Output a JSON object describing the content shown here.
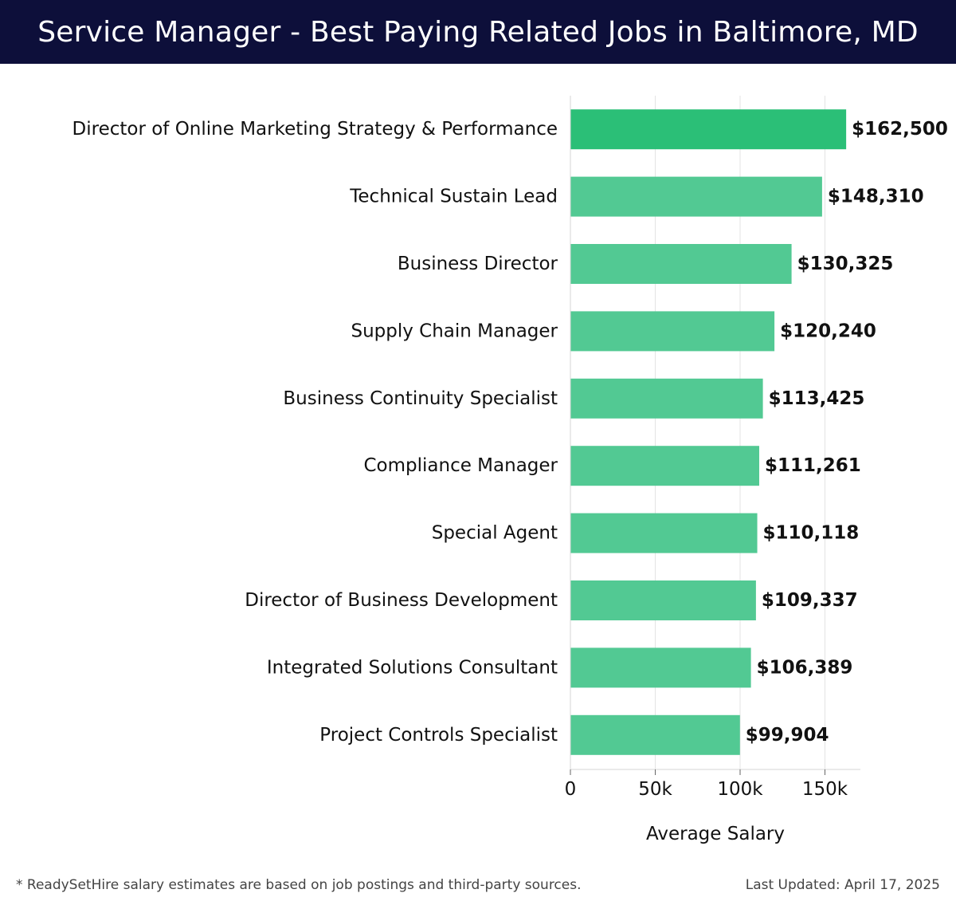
{
  "header": {
    "title": "Service Manager - Best Paying Related Jobs in Baltimore, MD"
  },
  "chart_data": {
    "type": "bar",
    "orientation": "horizontal",
    "categories": [
      "Director of Online Marketing Strategy & Performance",
      "Technical Sustain Lead",
      "Business Director",
      "Supply Chain Manager",
      "Business Continuity Specialist",
      "Compliance Manager",
      "Special Agent",
      "Director of Business Development",
      "Integrated Solutions Consultant",
      "Project Controls Specialist"
    ],
    "values": [
      162500,
      148310,
      130325,
      120240,
      113425,
      111261,
      110118,
      109337,
      106389,
      99904
    ],
    "value_labels": [
      "$162,500",
      "$148,310",
      "$130,325",
      "$120,240",
      "$113,425",
      "$111,261",
      "$110,118",
      "$109,337",
      "$106,389",
      "$99,904"
    ],
    "xlabel": "Average Salary",
    "ylabel": "",
    "xlim": [
      0,
      170000
    ],
    "xticks": [
      0,
      50000,
      100000,
      150000
    ],
    "xtick_labels": [
      "0",
      "50k",
      "100k",
      "150k"
    ],
    "grid": "vertical",
    "colors": {
      "bar_top": "#2bbf77",
      "bar": "#52c993"
    }
  },
  "footer": {
    "note": "* ReadySetHire salary estimates are based on job postings and third-party sources.",
    "updated": "Last Updated: April 17, 2025"
  }
}
